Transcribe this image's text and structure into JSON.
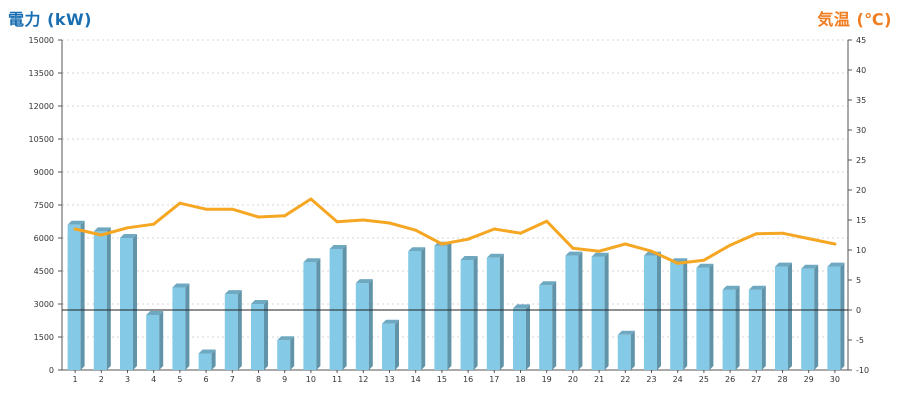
{
  "chart_data": {
    "type": "bar",
    "title": "",
    "ylabel_left": "電力 (kW)",
    "ylabel_right": "気温 (℃)",
    "categories": [
      "1",
      "2",
      "3",
      "4",
      "5",
      "6",
      "7",
      "8",
      "9",
      "10",
      "11",
      "12",
      "13",
      "14",
      "15",
      "16",
      "17",
      "18",
      "19",
      "20",
      "21",
      "22",
      "23",
      "24",
      "25",
      "26",
      "27",
      "28",
      "29",
      "30"
    ],
    "y_left": {
      "min": 0,
      "max": 15000,
      "ticks": [
        "0",
        "1500",
        "3000",
        "4500",
        "6000",
        "7500",
        "9000",
        "10500",
        "12000",
        "13500",
        "15000"
      ]
    },
    "y_right": {
      "min": -10,
      "max": 45,
      "ticks": [
        "-10",
        "-5",
        "0",
        "5",
        "10",
        "15",
        "20",
        "25",
        "30",
        "35",
        "40",
        "45"
      ]
    },
    "grid": true,
    "series": [
      {
        "type": "bar",
        "axis": "left",
        "color": "#87ceeb",
        "values": [
          6600,
          6300,
          6000,
          2500,
          3750,
          750,
          3450,
          3000,
          1350,
          4900,
          5500,
          3950,
          2100,
          5400,
          5650,
          5000,
          5100,
          2800,
          3850,
          5200,
          5150,
          1600,
          5200,
          4900,
          4650,
          3650,
          3650,
          4700,
          4600,
          4700
        ]
      },
      {
        "type": "line",
        "axis": "right",
        "color": "#f5a623",
        "values": [
          13.5,
          12.5,
          13.7,
          14.3,
          17.8,
          16.8,
          16.8,
          15.5,
          15.7,
          18.5,
          14.7,
          15.0,
          14.5,
          13.3,
          11.0,
          11.8,
          13.5,
          12.8,
          14.8,
          10.3,
          9.8,
          11.0,
          9.8,
          7.8,
          8.3,
          10.8,
          12.7,
          12.8,
          11.9,
          11.0
        ]
      }
    ]
  }
}
